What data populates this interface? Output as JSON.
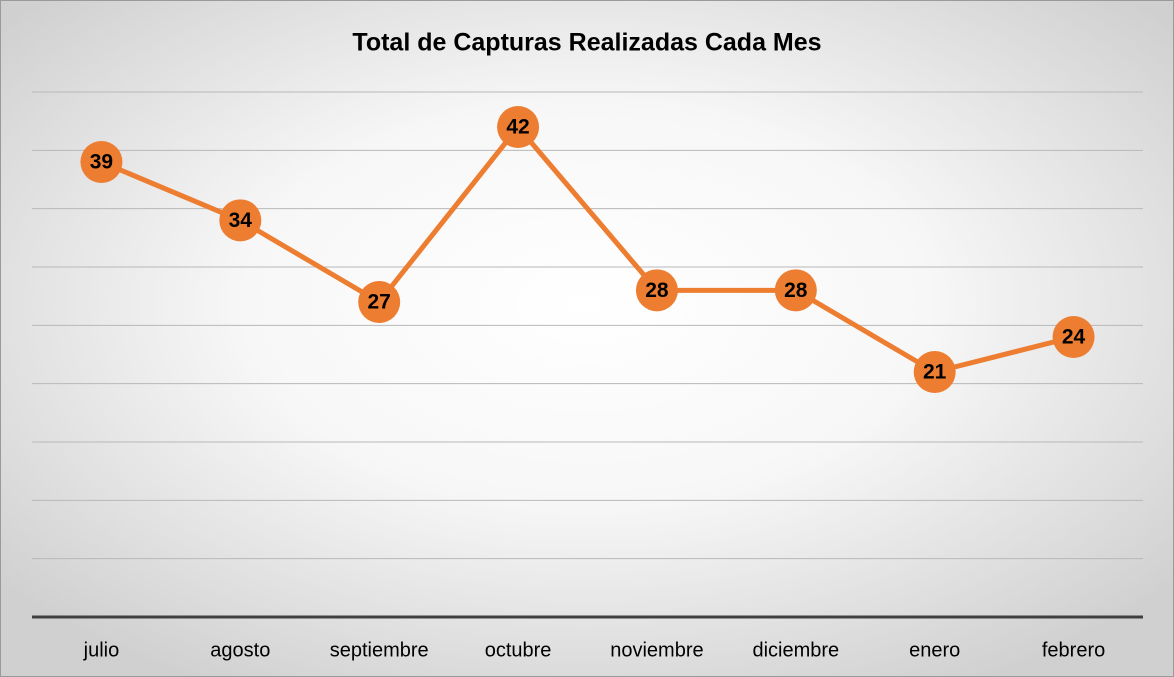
{
  "chart_data": {
    "type": "line",
    "title": "Total de Capturas Realizadas Cada Mes",
    "categories": [
      "julio",
      "agosto",
      "septiembre",
      "octubre",
      "noviembre",
      "diciembre",
      "enero",
      "febrero"
    ],
    "series": [
      {
        "name": "Total de Capturas",
        "color": "#ed7d31",
        "values": [
          39,
          34,
          27,
          42,
          28,
          28,
          21,
          24
        ]
      }
    ],
    "ylim": [
      0,
      45
    ],
    "yticks": [
      0,
      5,
      10,
      15,
      20,
      25,
      30,
      35,
      40,
      45
    ],
    "grid": true
  }
}
